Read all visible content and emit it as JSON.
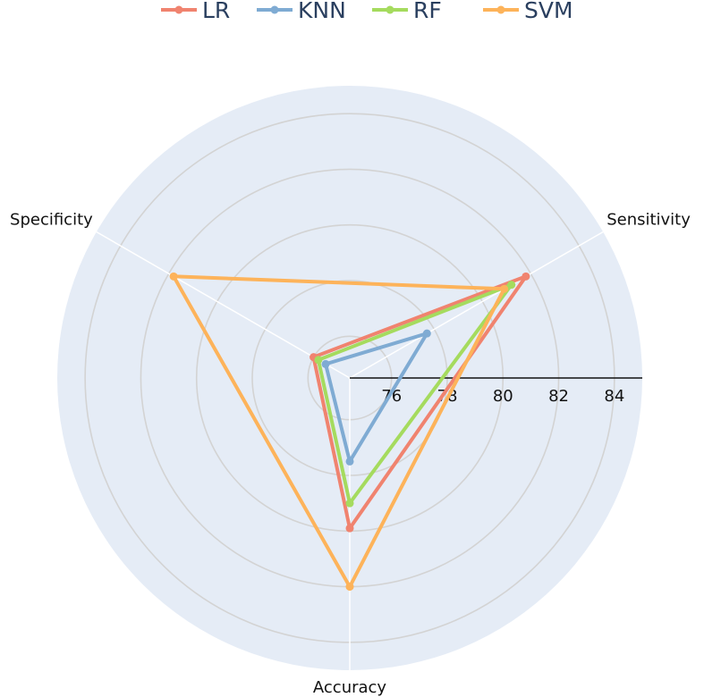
{
  "chart_data": {
    "type": "radar",
    "axes": [
      "Accuracy",
      "Sensitivity",
      "Specificity"
    ],
    "radial_range": [
      74.5,
      85
    ],
    "radial_ticks": [
      76,
      78,
      80,
      82,
      84
    ],
    "radial_tick_labels": [
      "76",
      "78",
      "80",
      "82",
      "84"
    ],
    "grid": true,
    "legend_position": "top",
    "plot_background": "#e5ecf6",
    "series": [
      {
        "name": "LR",
        "color": "#f0836f",
        "values": [
          79.9,
          81.8,
          76.0
        ]
      },
      {
        "name": "KNN",
        "color": "#7fabd3",
        "values": [
          77.5,
          77.7,
          75.5
        ]
      },
      {
        "name": "RF",
        "color": "#a5db5e",
        "values": [
          79.0,
          81.2,
          75.8
        ]
      },
      {
        "name": "SVM",
        "color": "#fdb35a",
        "values": [
          82.0,
          80.9,
          81.8
        ]
      }
    ]
  }
}
